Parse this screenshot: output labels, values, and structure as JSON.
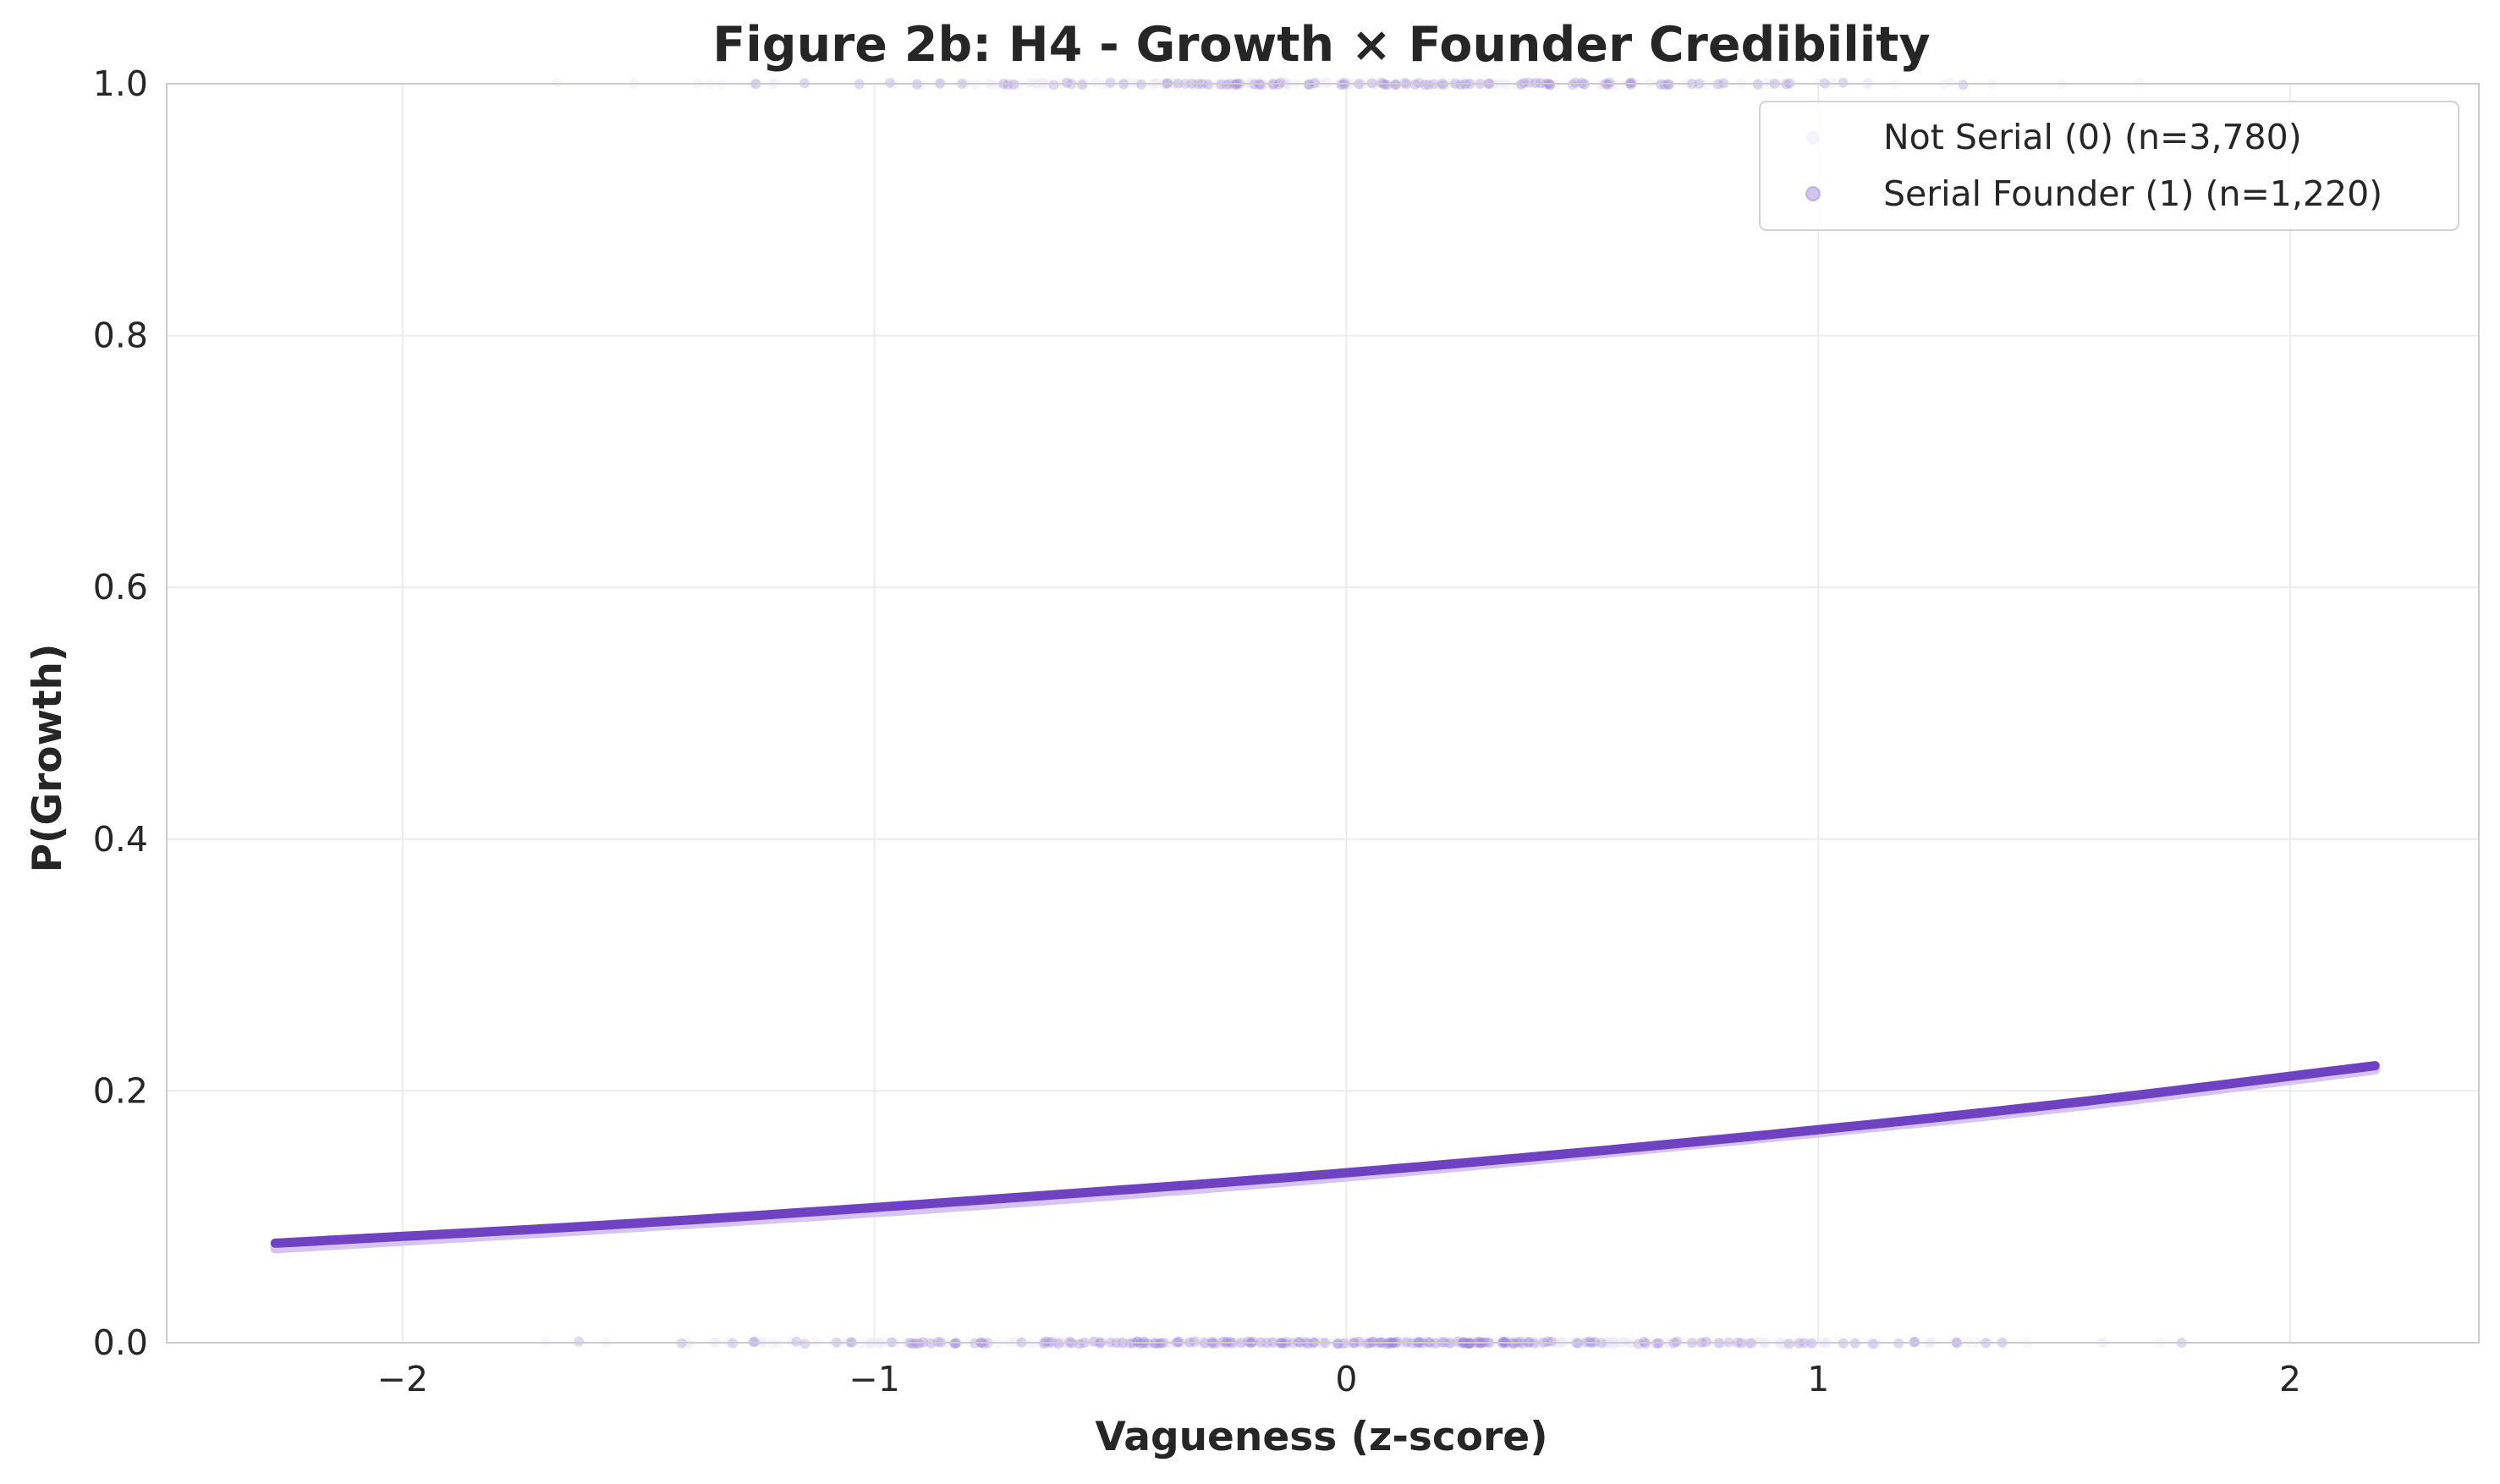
{
  "chart_data": {
    "type": "scatter",
    "title": "Figure 2b: H4 - Growth × Founder Credibility",
    "xlabel": "Vagueness (z-score)",
    "ylabel": "P(Growth)",
    "xlim": [
      -2.5,
      2.4
    ],
    "ylim": [
      0.0,
      1.0
    ],
    "x_ticks": [
      -2,
      -1,
      0,
      1,
      2
    ],
    "x_tick_labels": [
      "−2",
      "−1",
      "0",
      "1",
      "2"
    ],
    "y_ticks": [
      0.0,
      0.2,
      0.4,
      0.6,
      0.8,
      1.0
    ],
    "y_tick_labels": [
      "0.0",
      "0.2",
      "0.4",
      "0.6",
      "0.8",
      "1.0"
    ],
    "grid": true,
    "legend_position": "top-right",
    "series": [
      {
        "name": "Not Serial (0) (n=3,780)",
        "color": "#d6c3f2",
        "marker_color": "#ece4fa",
        "x": [
          -2.27,
          -1.5,
          -0.75,
          0.0,
          0.75,
          1.5,
          2.18
        ],
        "y": [
          0.075,
          0.092,
          0.11,
          0.132,
          0.158,
          0.186,
          0.217
        ]
      },
      {
        "name": "Serial Founder (1) (n=1,220)",
        "color": "#6f42c1",
        "marker_color": "#9b7fd6",
        "x": [
          -2.27,
          -1.5,
          -0.75,
          0.0,
          0.75,
          1.5,
          2.18
        ],
        "y": [
          0.079,
          0.095,
          0.114,
          0.135,
          0.16,
          0.189,
          0.22
        ]
      }
    ],
    "observed_outcomes": [
      0,
      1
    ]
  }
}
